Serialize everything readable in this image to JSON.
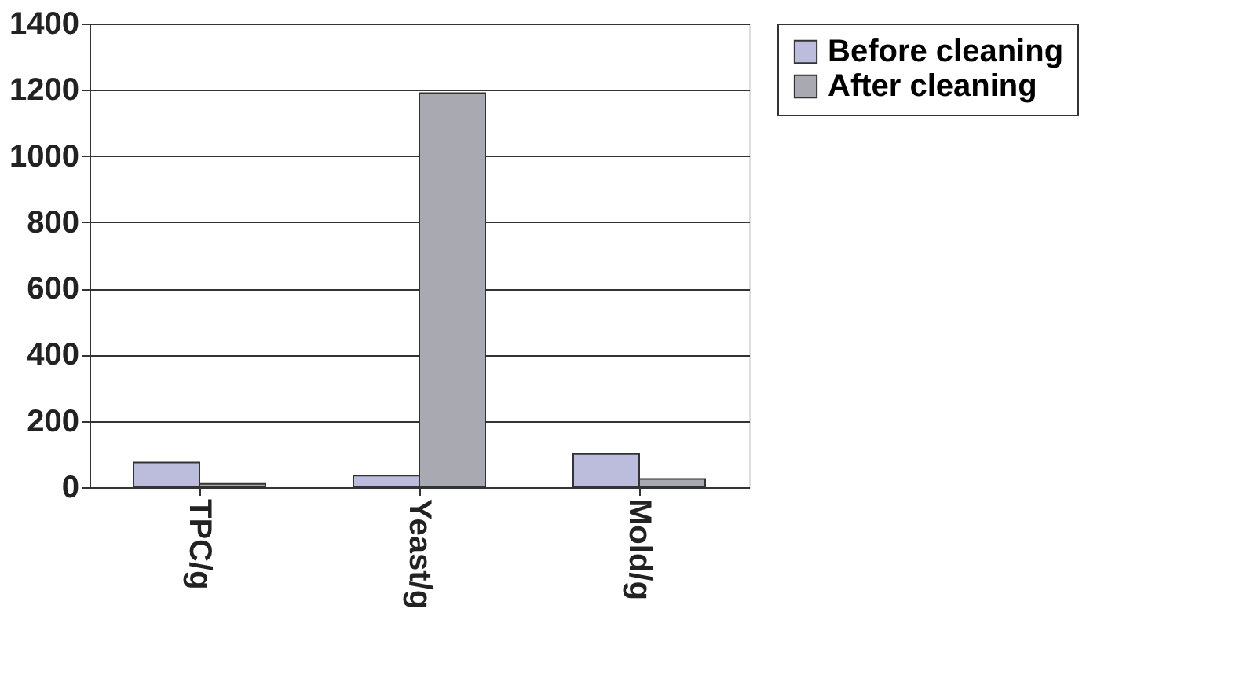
{
  "chart_data": {
    "type": "bar",
    "categories": [
      "TPC/g",
      "Yeast/g",
      "Mold/g"
    ],
    "series": [
      {
        "name": "Before cleaning",
        "color": "#bcbcdc",
        "values": [
          75,
          35,
          100
        ]
      },
      {
        "name": "After cleaning",
        "color": "#a9a9b2",
        "values": [
          10,
          1190,
          25
        ]
      }
    ],
    "ylim": [
      0,
      1400
    ],
    "yticks": [
      0,
      200,
      400,
      600,
      800,
      1000,
      1200,
      1400
    ],
    "grid": "y",
    "legend": "right"
  }
}
